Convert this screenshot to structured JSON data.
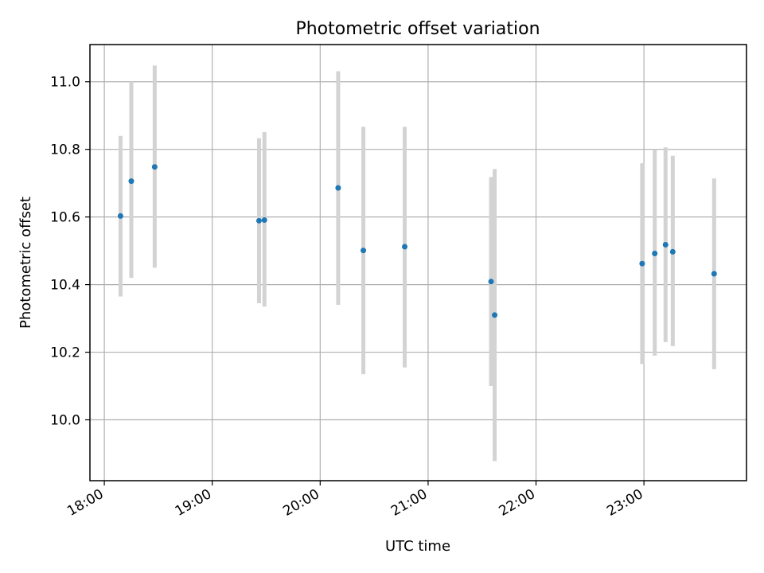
{
  "chart_data": {
    "type": "scatter",
    "title": "Photometric offset variation",
    "xlabel": "UTC time",
    "ylabel": "Photometric offset",
    "xlim": [
      "17:52",
      "23:57"
    ],
    "ylim": [
      9.82,
      11.11
    ],
    "xticks": [
      "18:00",
      "19:00",
      "20:00",
      "21:00",
      "22:00",
      "23:00"
    ],
    "yticks": [
      "10.0",
      "10.2",
      "10.4",
      "10.6",
      "10.8",
      "11.0"
    ],
    "grid": true,
    "marker_color": "#1f77b4",
    "errorbar_color": "#d3d3d3",
    "points": [
      {
        "x": "18:09",
        "y": 10.603,
        "err_low": 10.365,
        "err_high": 10.84
      },
      {
        "x": "18:15",
        "y": 10.706,
        "err_low": 10.42,
        "err_high": 11.0
      },
      {
        "x": "18:28",
        "y": 10.748,
        "err_low": 10.45,
        "err_high": 11.048
      },
      {
        "x": "19:26",
        "y": 10.589,
        "err_low": 10.345,
        "err_high": 10.833
      },
      {
        "x": "19:29",
        "y": 10.591,
        "err_low": 10.335,
        "err_high": 10.851
      },
      {
        "x": "20:10",
        "y": 10.686,
        "err_low": 10.34,
        "err_high": 11.031
      },
      {
        "x": "20:24",
        "y": 10.501,
        "err_low": 10.135,
        "err_high": 10.867
      },
      {
        "x": "20:47",
        "y": 10.512,
        "err_low": 10.155,
        "err_high": 10.867
      },
      {
        "x": "21:35",
        "y": 10.409,
        "err_low": 10.1,
        "err_high": 10.718
      },
      {
        "x": "21:37",
        "y": 10.31,
        "err_low": 9.878,
        "err_high": 10.742
      },
      {
        "x": "22:59",
        "y": 10.462,
        "err_low": 10.165,
        "err_high": 10.759
      },
      {
        "x": "23:06",
        "y": 10.492,
        "err_low": 10.19,
        "err_high": 10.8
      },
      {
        "x": "23:12",
        "y": 10.518,
        "err_low": 10.23,
        "err_high": 10.806
      },
      {
        "x": "23:16",
        "y": 10.497,
        "err_low": 10.218,
        "err_high": 10.781
      },
      {
        "x": "23:39",
        "y": 10.432,
        "err_low": 10.15,
        "err_high": 10.714
      }
    ]
  }
}
